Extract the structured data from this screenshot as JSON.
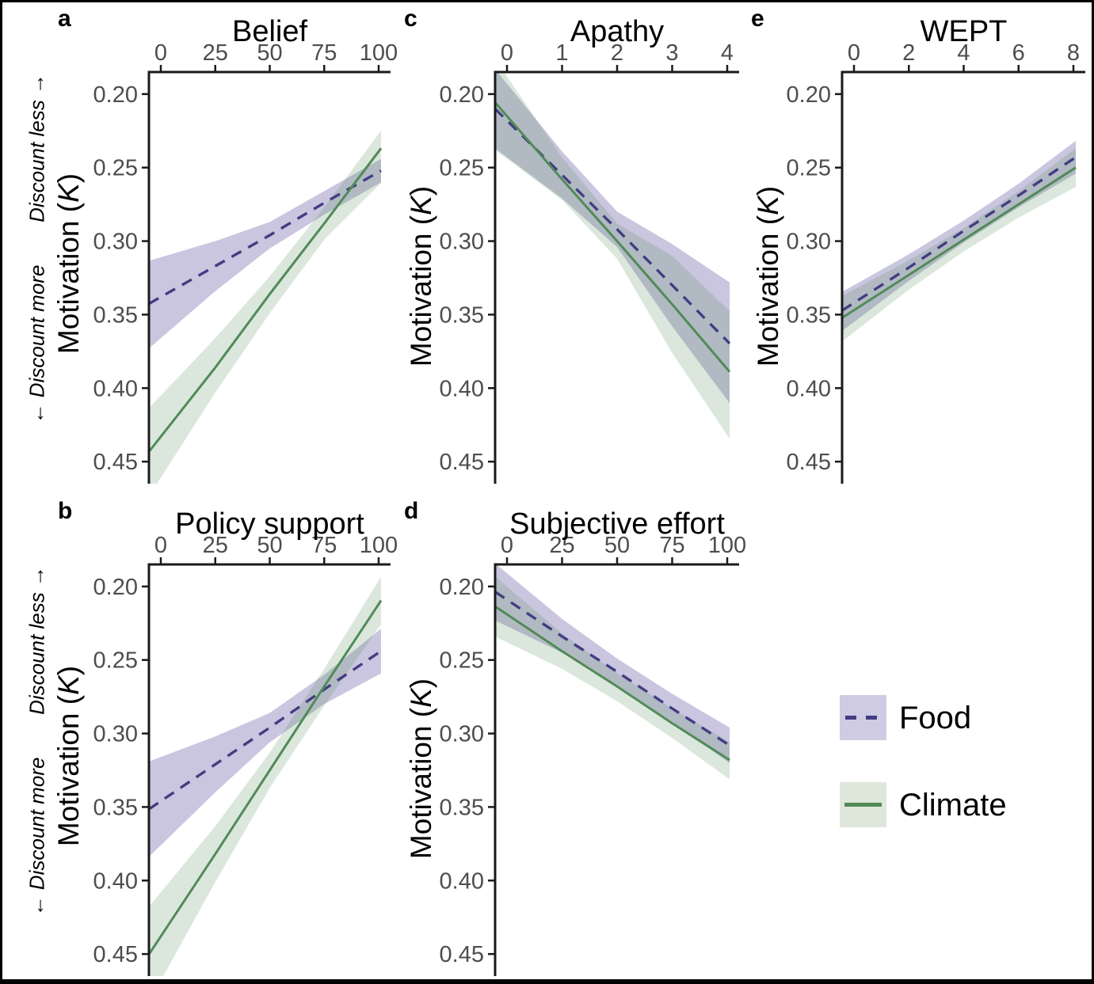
{
  "chart_data": {
    "type": "line",
    "description": "Five-panel regression figure: linear fits of Motivation (K, reversed axis) against five predictors, with 95% CI ribbons for Food and Climate conditions",
    "y_axis_title": {
      "pre": "Motivation (",
      "k": "K",
      "post": ")"
    },
    "annotations": {
      "less": "Discount less →",
      "more": "← Discount more"
    },
    "y_ticks": [
      0.2,
      0.25,
      0.3,
      0.35,
      0.4,
      0.45
    ],
    "y_tick_labels": [
      "0.20",
      "0.25",
      "0.30",
      "0.35",
      "0.40",
      "0.45"
    ],
    "y_domain": [
      0.185,
      0.465
    ],
    "y_axis_reversed": true,
    "grid": "off",
    "legend_position": "bottom-right",
    "colors": {
      "food_line": "#433d82",
      "food_band_fill": "rgba(90,79,160,0.32)",
      "food_band_solid": "#cfcbe2",
      "climate_line": "#528a57",
      "climate_band_fill": "rgba(83,141,89,0.21)",
      "climate_band_solid": "#dfe7db",
      "tick_label": "#4d4d4d",
      "axis": "#1a1a1a"
    },
    "legend": [
      {
        "label": "Food",
        "line_style": "dashed"
      },
      {
        "label": "Climate",
        "line_style": "solid"
      }
    ],
    "panels": [
      {
        "id": "a",
        "panel_label": "a",
        "title": "Belief",
        "x_domain": [
          0,
          100
        ],
        "x_ticks": [
          0,
          25,
          50,
          75,
          100
        ],
        "series": [
          {
            "name": "Food",
            "x": [
              0,
              25,
              50,
              75,
              100
            ],
            "y": [
              0.338,
              0.317,
              0.296,
              0.274,
              0.253
            ],
            "ci_upper": [
              0.311,
              0.3,
              0.287,
              0.266,
              0.245
            ],
            "ci_lower": [
              0.366,
              0.334,
              0.305,
              0.282,
              0.261
            ]
          },
          {
            "name": "Climate",
            "x": [
              0,
              25,
              50,
              75,
              100
            ],
            "y": [
              0.433,
              0.386,
              0.336,
              0.288,
              0.239
            ],
            "ci_upper": [
              0.405,
              0.366,
              0.324,
              0.277,
              0.227
            ],
            "ci_lower": [
              0.461,
              0.403,
              0.349,
              0.299,
              0.262
            ]
          }
        ]
      },
      {
        "id": "b",
        "panel_label": "b",
        "title": "Policy support",
        "x_domain": [
          0,
          100
        ],
        "x_ticks": [
          0,
          25,
          50,
          75,
          100
        ],
        "series": [
          {
            "name": "Food",
            "x": [
              0,
              25,
              50,
              75,
              100
            ],
            "y": [
              0.346,
              0.321,
              0.296,
              0.27,
              0.245
            ],
            "ci_upper": [
              0.316,
              0.302,
              0.286,
              0.26,
              0.23
            ],
            "ci_lower": [
              0.376,
              0.34,
              0.306,
              0.28,
              0.26
            ]
          },
          {
            "name": "Climate",
            "x": [
              0,
              25,
              50,
              75,
              100
            ],
            "y": [
              0.438,
              0.382,
              0.325,
              0.268,
              0.212
            ],
            "ci_upper": [
              0.408,
              0.363,
              0.313,
              0.256,
              0.196
            ],
            "ci_lower": [
              0.468,
              0.401,
              0.337,
              0.281,
              0.228
            ]
          }
        ]
      },
      {
        "id": "c",
        "panel_label": "c",
        "title": "Apathy",
        "x_domain": [
          0,
          4
        ],
        "x_ticks": [
          0,
          1,
          2,
          3,
          4
        ],
        "series": [
          {
            "name": "Food",
            "x": [
              0,
              1,
              2,
              3,
              4
            ],
            "y": [
              0.218,
              0.255,
              0.292,
              0.33,
              0.368
            ],
            "ci_upper": [
              0.193,
              0.239,
              0.28,
              0.302,
              0.327
            ],
            "ci_lower": [
              0.243,
              0.271,
              0.304,
              0.358,
              0.408
            ]
          },
          {
            "name": "Climate",
            "x": [
              0,
              1,
              2,
              3,
              4
            ],
            "y": [
              0.215,
              0.258,
              0.3,
              0.343,
              0.387
            ],
            "ci_upper": [
              0.188,
              0.243,
              0.288,
              0.31,
              0.346
            ],
            "ci_lower": [
              0.244,
              0.272,
              0.312,
              0.376,
              0.432
            ]
          }
        ]
      },
      {
        "id": "d",
        "panel_label": "d",
        "title": "Subjective effort",
        "x_domain": [
          0,
          100
        ],
        "x_ticks": [
          0,
          25,
          50,
          75,
          100
        ],
        "series": [
          {
            "name": "Food",
            "x": [
              0,
              25,
              50,
              75,
              100
            ],
            "y": [
              0.209,
              0.234,
              0.258,
              0.283,
              0.307
            ],
            "ci_upper": [
              0.191,
              0.222,
              0.249,
              0.273,
              0.295
            ],
            "ci_lower": [
              0.227,
              0.245,
              0.267,
              0.292,
              0.319
            ]
          },
          {
            "name": "Climate",
            "x": [
              0,
              25,
              50,
              75,
              100
            ],
            "y": [
              0.219,
              0.244,
              0.268,
              0.293,
              0.317
            ],
            "ci_upper": [
              0.2,
              0.232,
              0.259,
              0.283,
              0.305
            ],
            "ci_lower": [
              0.238,
              0.256,
              0.278,
              0.303,
              0.33
            ]
          }
        ]
      },
      {
        "id": "e",
        "panel_label": "e",
        "title": "WEPT",
        "x_domain": [
          0,
          8
        ],
        "x_ticks": [
          0,
          2,
          4,
          6,
          8
        ],
        "series": [
          {
            "name": "Food",
            "x": [
              0,
              2,
              4,
              6,
              8
            ],
            "y": [
              0.342,
              0.318,
              0.293,
              0.269,
              0.244
            ],
            "ci_upper": [
              0.33,
              0.309,
              0.286,
              0.261,
              0.233
            ],
            "ci_lower": [
              0.355,
              0.327,
              0.301,
              0.277,
              0.255
            ]
          },
          {
            "name": "Climate",
            "x": [
              0,
              2,
              4,
              6,
              8
            ],
            "y": [
              0.347,
              0.323,
              0.299,
              0.275,
              0.251
            ],
            "ci_upper": [
              0.333,
              0.313,
              0.291,
              0.266,
              0.238
            ],
            "ci_lower": [
              0.362,
              0.333,
              0.307,
              0.284,
              0.264
            ]
          }
        ]
      }
    ]
  }
}
